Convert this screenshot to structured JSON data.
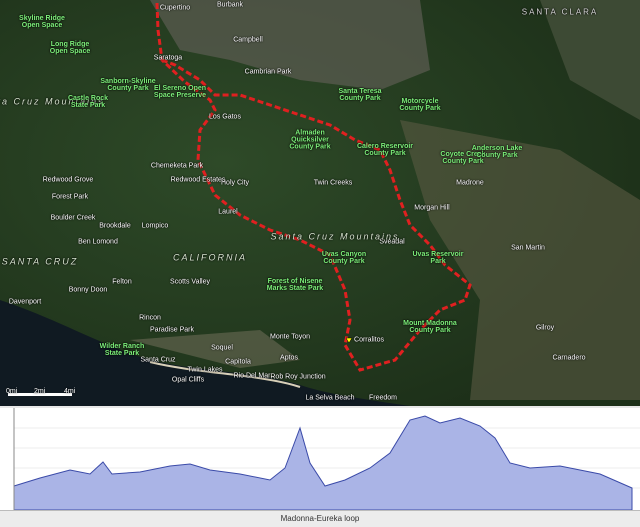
{
  "map": {
    "places": [
      "Cupertino",
      "Burbank",
      "Campbell",
      "Saratoga",
      "Los Gatos",
      "Cambrian Park",
      "SANTA CLARA",
      "Morgan Hill",
      "San Martin",
      "Gilroy",
      "Santa Cruz",
      "Capitola",
      "Soquel",
      "Rio Del Mar",
      "Aptos",
      "Felton",
      "Scotts Valley",
      "Ben Lomond",
      "Boulder Creek",
      "Brookdale",
      "Lompico",
      "Redwood Grove",
      "Forest Park",
      "Twin Creeks",
      "Laurel",
      "Holy City",
      "Sveadal",
      "Corralitos",
      "Freedom",
      "La Selva Beach",
      "Davenport",
      "Bonny Doon",
      "Opal Cliffs",
      "Rob Roy Junction",
      "Monte Toyon",
      "Madrone",
      "Paradise Park",
      "Rincon",
      "Twin Lakes",
      "Carnadero",
      "Chemeketa Park",
      "Redwood Estates"
    ],
    "regions": [
      "SANTA CRUZ",
      "CALIFORNIA",
      "Santa Cruz Mountains",
      "Santa Cruz Mountains"
    ],
    "parks": [
      "El Sereno Open Space Preserve",
      "Sanborn-Skyline County Park",
      "Castle Rock State Park",
      "Almaden Quicksilver County Park",
      "Santa Teresa County Park",
      "Calero Reservoir County Park",
      "Motorcycle County Park",
      "Coyote Creek County Park",
      "Anderson Lake County Park",
      "Uvas Canyon County Park",
      "Forest of Nisene Marks State Park",
      "Mount Madonna County Park",
      "Wilder Ranch State Park",
      "Long Ridge Open Space",
      "Skyline Ridge Open Space",
      "Uvas Reservoir Park"
    ],
    "scale": [
      "0mi",
      "2mi",
      "4mi"
    ]
  },
  "profile": {
    "title": "Madonna-Eureka loop"
  }
}
